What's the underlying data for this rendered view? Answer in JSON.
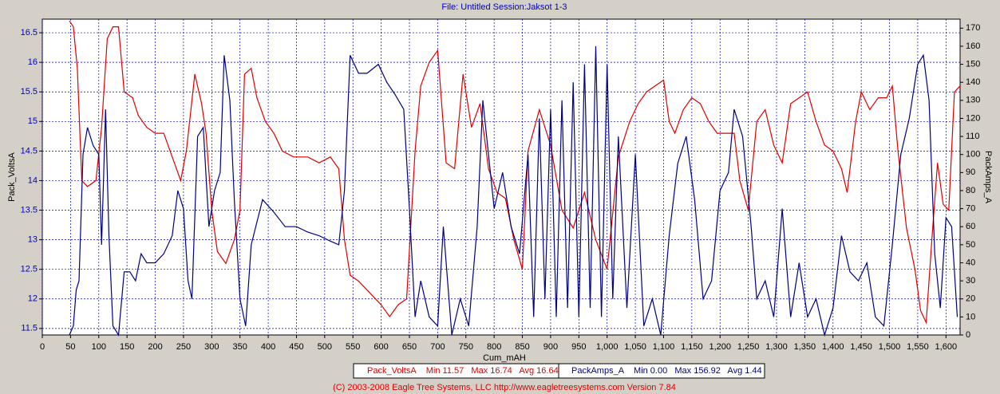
{
  "chart_data": {
    "type": "line",
    "title": "File: Untitled   Session:Jaksot 1-3",
    "x_label": "Cum_mAH",
    "y_label": "Pack_VoltsA",
    "y2_label": "PackAmps_A",
    "footer": "(C) 2003-2008 Eagle Tree Systems, LLC     http://www.eagletreesystems.com     Version 7.84",
    "grid": true,
    "xlim": [
      0,
      1625
    ],
    "xticks": [
      0,
      50,
      100,
      150,
      200,
      250,
      300,
      350,
      400,
      450,
      500,
      550,
      600,
      650,
      700,
      750,
      800,
      850,
      900,
      950,
      {
        "value": 1000,
        "label": "1,000"
      },
      {
        "value": 1050,
        "label": "1,050"
      },
      {
        "value": 1100,
        "label": "1,100"
      },
      {
        "value": 1150,
        "label": "1,150"
      },
      {
        "value": 1200,
        "label": "1,200"
      },
      {
        "value": 1250,
        "label": "1,250"
      },
      {
        "value": 1300,
        "label": "1,300"
      },
      {
        "value": 1350,
        "label": "1,350"
      },
      {
        "value": 1400,
        "label": "1,400"
      },
      {
        "value": 1450,
        "label": "1,450"
      },
      {
        "value": 1500,
        "label": "1,500"
      },
      {
        "value": 1550,
        "label": "1,550"
      },
      {
        "value": 1600,
        "label": "1,600"
      }
    ],
    "ylim": [
      11.39,
      16.73
    ],
    "yticks": [
      11.5,
      12,
      12.5,
      13,
      13.5,
      14,
      14.5,
      15,
      15.5,
      16,
      16.5
    ],
    "y2lim": [
      0,
      175
    ],
    "y2ticks": [
      0,
      10,
      20,
      30,
      40,
      50,
      60,
      70,
      80,
      90,
      100,
      110,
      120,
      130,
      140,
      150,
      160,
      170
    ],
    "series": [
      {
        "name": "Pack_VoltsA",
        "legend_stats": "Min 11.57   Max 16.74   Avg 16.64",
        "color": "#e00000",
        "axis": "y",
        "x": [
          48,
          55,
          62,
          70,
          80,
          95,
          105,
          115,
          125,
          135,
          145,
          160,
          170,
          185,
          200,
          215,
          230,
          245,
          255,
          270,
          282,
          290,
          300,
          310,
          325,
          340,
          350,
          358,
          370,
          380,
          395,
          410,
          425,
          445,
          470,
          490,
          510,
          525,
          535,
          545,
          560,
          580,
          600,
          615,
          630,
          645,
          660,
          670,
          685,
          700,
          715,
          730,
          745,
          760,
          775,
          790,
          805,
          820,
          835,
          850,
          860,
          880,
          900,
          920,
          940,
          960,
          980,
          1000,
          1020,
          1040,
          1055,
          1070,
          1085,
          1100,
          1110,
          1120,
          1135,
          1150,
          1165,
          1180,
          1195,
          1210,
          1225,
          1235,
          1250,
          1265,
          1280,
          1295,
          1310,
          1325,
          1340,
          1355,
          1370,
          1385,
          1400,
          1415,
          1425,
          1440,
          1450,
          1465,
          1480,
          1495,
          1505,
          1515,
          1530,
          1545,
          1555,
          1565,
          1575,
          1585,
          1595,
          1605,
          1615,
          1625
        ],
        "values": [
          16.7,
          16.6,
          15.9,
          14.0,
          13.9,
          14.0,
          14.9,
          16.4,
          16.6,
          16.6,
          15.5,
          15.4,
          15.1,
          14.9,
          14.8,
          14.8,
          14.4,
          14.0,
          14.5,
          15.8,
          15.3,
          14.8,
          13.5,
          12.8,
          12.6,
          13.0,
          13.5,
          15.8,
          15.9,
          15.4,
          15.0,
          14.8,
          14.5,
          14.4,
          14.4,
          14.3,
          14.4,
          14.2,
          13.0,
          12.4,
          12.3,
          12.1,
          11.9,
          11.7,
          11.9,
          12.0,
          14.5,
          15.6,
          16.0,
          16.2,
          14.3,
          14.2,
          15.8,
          14.9,
          15.3,
          14.2,
          13.8,
          13.7,
          13.0,
          12.5,
          14.5,
          15.2,
          14.6,
          13.5,
          13.2,
          13.8,
          13.0,
          12.5,
          14.4,
          15.0,
          15.3,
          15.5,
          15.6,
          15.7,
          15.0,
          14.8,
          15.2,
          15.4,
          15.3,
          15.0,
          14.8,
          14.8,
          14.8,
          14.0,
          13.5,
          15.0,
          15.2,
          14.6,
          14.3,
          15.3,
          15.4,
          15.5,
          15.0,
          14.6,
          14.5,
          14.2,
          13.8,
          15.0,
          15.5,
          15.2,
          15.4,
          15.4,
          15.6,
          14.5,
          13.2,
          12.5,
          11.8,
          11.6,
          13.0,
          14.3,
          13.6,
          13.5,
          15.5,
          15.6
        ]
      },
      {
        "name": "PackAmps_A",
        "legend_stats": "Min 0.00   Max 156.92   Avg 1.44",
        "color": "#000080",
        "axis": "y2",
        "x": [
          48,
          55,
          60,
          65,
          72,
          80,
          90,
          100,
          105,
          112,
          118,
          125,
          135,
          145,
          155,
          165,
          175,
          185,
          200,
          215,
          230,
          240,
          250,
          258,
          265,
          275,
          285,
          295,
          305,
          315,
          322,
          332,
          340,
          350,
          360,
          370,
          390,
          410,
          430,
          450,
          470,
          490,
          510,
          525,
          535,
          545,
          560,
          575,
          595,
          610,
          625,
          640,
          650,
          660,
          670,
          685,
          700,
          710,
          725,
          740,
          755,
          770,
          780,
          790,
          800,
          815,
          830,
          845,
          860,
          870,
          880,
          890,
          900,
          910,
          920,
          930,
          940,
          950,
          960,
          970,
          980,
          990,
          1000,
          1010,
          1020,
          1035,
          1050,
          1065,
          1080,
          1095,
          1110,
          1125,
          1140,
          1155,
          1170,
          1185,
          1200,
          1215,
          1225,
          1240,
          1255,
          1265,
          1280,
          1295,
          1310,
          1325,
          1340,
          1355,
          1370,
          1385,
          1400,
          1415,
          1430,
          1445,
          1460,
          1475,
          1490,
          1505,
          1520,
          1535,
          1550,
          1560,
          1570,
          1580,
          1590,
          1600,
          1610,
          1620
        ],
        "values": [
          0,
          5,
          25,
          30,
          100,
          115,
          105,
          100,
          50,
          125,
          55,
          5,
          0,
          35,
          35,
          30,
          45,
          40,
          40,
          45,
          55,
          80,
          70,
          30,
          20,
          110,
          115,
          60,
          80,
          90,
          155,
          130,
          75,
          20,
          5,
          50,
          75,
          68,
          60,
          60,
          57,
          55,
          52,
          50,
          80,
          155,
          145,
          145,
          150,
          140,
          133,
          125,
          70,
          10,
          30,
          10,
          5,
          60,
          0,
          20,
          5,
          60,
          130,
          100,
          70,
          90,
          60,
          45,
          100,
          10,
          120,
          20,
          125,
          10,
          130,
          15,
          140,
          10,
          150,
          15,
          160,
          10,
          150,
          20,
          110,
          15,
          100,
          5,
          20,
          0,
          55,
          95,
          110,
          75,
          20,
          30,
          80,
          90,
          125,
          110,
          60,
          20,
          30,
          10,
          70,
          10,
          40,
          10,
          20,
          0,
          15,
          55,
          35,
          30,
          40,
          10,
          5,
          50,
          100,
          120,
          150,
          155,
          130,
          45,
          15,
          65,
          60,
          10
        ]
      }
    ]
  }
}
